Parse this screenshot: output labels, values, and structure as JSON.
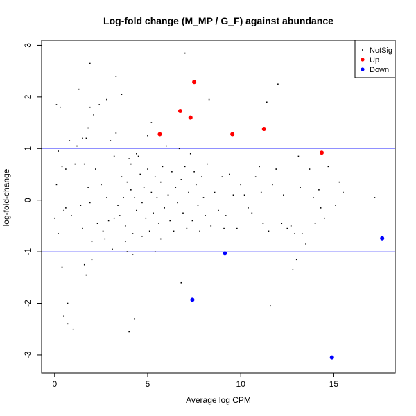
{
  "chart_data": {
    "type": "scatter",
    "title": "Log-fold change (M_MP / G_F) against abundance",
    "xlabel": "Average log CPM",
    "ylabel": "log-fold-change",
    "xlim": [
      -0.7,
      18.3
    ],
    "ylim": [
      -3.35,
      3.1
    ],
    "x_ticks": [
      0,
      5,
      10,
      15
    ],
    "y_ticks": [
      -3,
      -2,
      -1,
      0,
      1,
      2,
      3
    ],
    "grid": false,
    "legend_position": "top-right",
    "reference_lines": [
      {
        "y": 1,
        "color": "#8080ff"
      },
      {
        "y": -1,
        "color": "#8080ff"
      }
    ],
    "legend": [
      {
        "label": "NotSig",
        "color": "#000000"
      },
      {
        "label": "Up",
        "color": "#ff0000"
      },
      {
        "label": "Down",
        "color": "#0000ff"
      }
    ],
    "series": [
      {
        "name": "NotSig",
        "color": "#000000",
        "points": [
          [
            0.0,
            -0.35
          ],
          [
            0.1,
            0.3
          ],
          [
            0.1,
            1.85
          ],
          [
            0.2,
            -0.65
          ],
          [
            0.2,
            0.95
          ],
          [
            0.3,
            1.8
          ],
          [
            0.4,
            -1.3
          ],
          [
            0.4,
            0.65
          ],
          [
            0.5,
            -0.2
          ],
          [
            0.5,
            -2.25
          ],
          [
            0.6,
            -0.15
          ],
          [
            0.6,
            0.6
          ],
          [
            0.7,
            -2.0
          ],
          [
            0.7,
            -2.4
          ],
          [
            0.8,
            1.15
          ],
          [
            0.9,
            -0.3
          ],
          [
            1.0,
            -2.5
          ],
          [
            1.1,
            0.7
          ],
          [
            1.2,
            1.05
          ],
          [
            1.3,
            2.15
          ],
          [
            1.4,
            -0.1
          ],
          [
            1.5,
            1.2
          ],
          [
            1.5,
            -0.55
          ],
          [
            1.6,
            0.7
          ],
          [
            1.6,
            -1.25
          ],
          [
            1.7,
            1.2
          ],
          [
            1.7,
            -1.45
          ],
          [
            1.8,
            0.25
          ],
          [
            1.8,
            1.4
          ],
          [
            1.9,
            -0.05
          ],
          [
            1.9,
            1.8
          ],
          [
            1.9,
            2.65
          ],
          [
            2.0,
            -0.8
          ],
          [
            2.0,
            -1.15
          ],
          [
            2.1,
            1.65
          ],
          [
            2.2,
            0.6
          ],
          [
            2.3,
            -0.45
          ],
          [
            2.4,
            1.85
          ],
          [
            2.5,
            0.3
          ],
          [
            2.6,
            -0.6
          ],
          [
            2.7,
            -0.75
          ],
          [
            2.8,
            1.95
          ],
          [
            2.8,
            0.05
          ],
          [
            2.9,
            -0.4
          ],
          [
            3.0,
            1.15
          ],
          [
            3.1,
            -0.95
          ],
          [
            3.2,
            -0.35
          ],
          [
            3.2,
            0.85
          ],
          [
            3.3,
            1.3
          ],
          [
            3.3,
            2.4
          ],
          [
            3.4,
            -0.1
          ],
          [
            3.5,
            -0.3
          ],
          [
            3.6,
            2.05
          ],
          [
            3.6,
            0.45
          ],
          [
            3.7,
            0.05
          ],
          [
            3.8,
            -0.5
          ],
          [
            3.8,
            -0.8
          ],
          [
            3.9,
            0.35
          ],
          [
            3.9,
            -1.0
          ],
          [
            4.0,
            0.8
          ],
          [
            4.0,
            -2.55
          ],
          [
            4.1,
            0.7
          ],
          [
            4.1,
            0.2
          ],
          [
            4.2,
            -0.65
          ],
          [
            4.2,
            -1.05
          ],
          [
            4.3,
            0.05
          ],
          [
            4.3,
            -2.3
          ],
          [
            4.4,
            0.9
          ],
          [
            4.4,
            -0.2
          ],
          [
            4.5,
            0.85
          ],
          [
            4.6,
            0.5
          ],
          [
            4.7,
            -0.05
          ],
          [
            4.7,
            -0.7
          ],
          [
            4.8,
            0.25
          ],
          [
            4.9,
            -0.35
          ],
          [
            5.0,
            0.6
          ],
          [
            5.0,
            1.25
          ],
          [
            5.1,
            -0.6
          ],
          [
            5.2,
            0.15
          ],
          [
            5.2,
            1.5
          ],
          [
            5.3,
            -0.25
          ],
          [
            5.4,
            0.45
          ],
          [
            5.4,
            -1.0
          ],
          [
            5.5,
            0.05
          ],
          [
            5.6,
            -0.45
          ],
          [
            5.7,
            0.35
          ],
          [
            5.7,
            -0.75
          ],
          [
            5.8,
            0.65
          ],
          [
            5.9,
            -0.15
          ],
          [
            6.0,
            1.05
          ],
          [
            6.1,
            0.1
          ],
          [
            6.2,
            -0.4
          ],
          [
            6.3,
            0.55
          ],
          [
            6.4,
            -0.6
          ],
          [
            6.5,
            0.25
          ],
          [
            6.6,
            -0.05
          ],
          [
            6.7,
            1.0
          ],
          [
            6.8,
            0.4
          ],
          [
            6.8,
            -1.6
          ],
          [
            6.9,
            -0.25
          ],
          [
            7.0,
            2.85
          ],
          [
            7.0,
            0.65
          ],
          [
            7.1,
            -0.55
          ],
          [
            7.2,
            0.15
          ],
          [
            7.3,
            0.9
          ],
          [
            7.4,
            -0.4
          ],
          [
            7.5,
            0.55
          ],
          [
            7.6,
            0.3
          ],
          [
            7.7,
            -0.1
          ],
          [
            7.8,
            -0.6
          ],
          [
            7.9,
            0.45
          ],
          [
            8.0,
            0.05
          ],
          [
            8.1,
            -0.3
          ],
          [
            8.2,
            0.7
          ],
          [
            8.3,
            1.95
          ],
          [
            8.4,
            -0.5
          ],
          [
            8.6,
            0.15
          ],
          [
            8.8,
            -0.2
          ],
          [
            9.0,
            0.45
          ],
          [
            9.1,
            -0.55
          ],
          [
            9.2,
            -0.3
          ],
          [
            9.4,
            0.5
          ],
          [
            9.6,
            0.1
          ],
          [
            9.8,
            -0.55
          ],
          [
            10.0,
            0.3
          ],
          [
            10.2,
            0.1
          ],
          [
            10.4,
            -0.15
          ],
          [
            10.6,
            -0.25
          ],
          [
            10.8,
            0.45
          ],
          [
            11.0,
            0.65
          ],
          [
            11.1,
            0.15
          ],
          [
            11.2,
            -0.45
          ],
          [
            11.4,
            1.9
          ],
          [
            11.5,
            -0.6
          ],
          [
            11.6,
            -2.05
          ],
          [
            11.7,
            0.3
          ],
          [
            11.9,
            0.6
          ],
          [
            12.0,
            2.25
          ],
          [
            12.2,
            -0.45
          ],
          [
            12.3,
            0.1
          ],
          [
            12.5,
            -0.55
          ],
          [
            12.7,
            -0.5
          ],
          [
            12.8,
            -1.35
          ],
          [
            12.9,
            -0.65
          ],
          [
            13.0,
            -1.15
          ],
          [
            13.1,
            0.85
          ],
          [
            13.2,
            0.25
          ],
          [
            13.3,
            -0.65
          ],
          [
            13.5,
            -0.85
          ],
          [
            13.7,
            0.6
          ],
          [
            13.9,
            0.05
          ],
          [
            14.0,
            -0.45
          ],
          [
            14.2,
            0.2
          ],
          [
            14.3,
            -0.15
          ],
          [
            14.5,
            -0.35
          ],
          [
            14.7,
            0.65
          ],
          [
            15.1,
            -0.1
          ],
          [
            15.3,
            0.35
          ],
          [
            15.5,
            0.15
          ],
          [
            17.2,
            0.05
          ]
        ]
      },
      {
        "name": "Up",
        "color": "#ff0000",
        "points": [
          [
            5.65,
            1.28
          ],
          [
            6.75,
            1.73
          ],
          [
            7.3,
            1.6
          ],
          [
            7.5,
            2.29
          ],
          [
            9.55,
            1.28
          ],
          [
            11.25,
            1.38
          ],
          [
            14.35,
            0.92
          ]
        ]
      },
      {
        "name": "Down",
        "color": "#0000ff",
        "points": [
          [
            7.4,
            -1.93
          ],
          [
            9.15,
            -1.03
          ],
          [
            14.9,
            -3.05
          ],
          [
            17.6,
            -0.74
          ]
        ]
      }
    ]
  }
}
